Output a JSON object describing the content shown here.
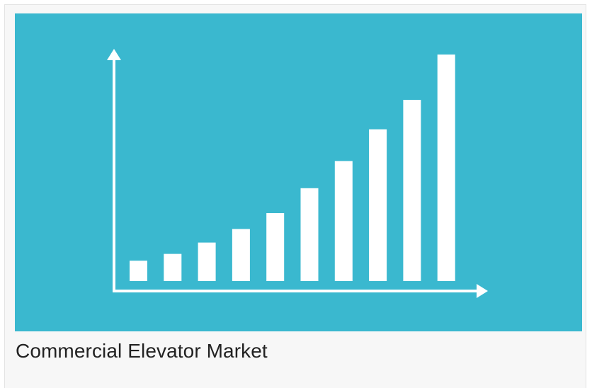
{
  "card": {
    "title": "Commercial Elevator Market"
  },
  "thumbnail": {
    "background_color": "#3ab8cf",
    "foreground_color": "#ffffff",
    "icon": "bar-chart-growth-icon",
    "bars_relative_heights": [
      0.09,
      0.12,
      0.17,
      0.23,
      0.3,
      0.41,
      0.53,
      0.67,
      0.8,
      1.0
    ]
  }
}
